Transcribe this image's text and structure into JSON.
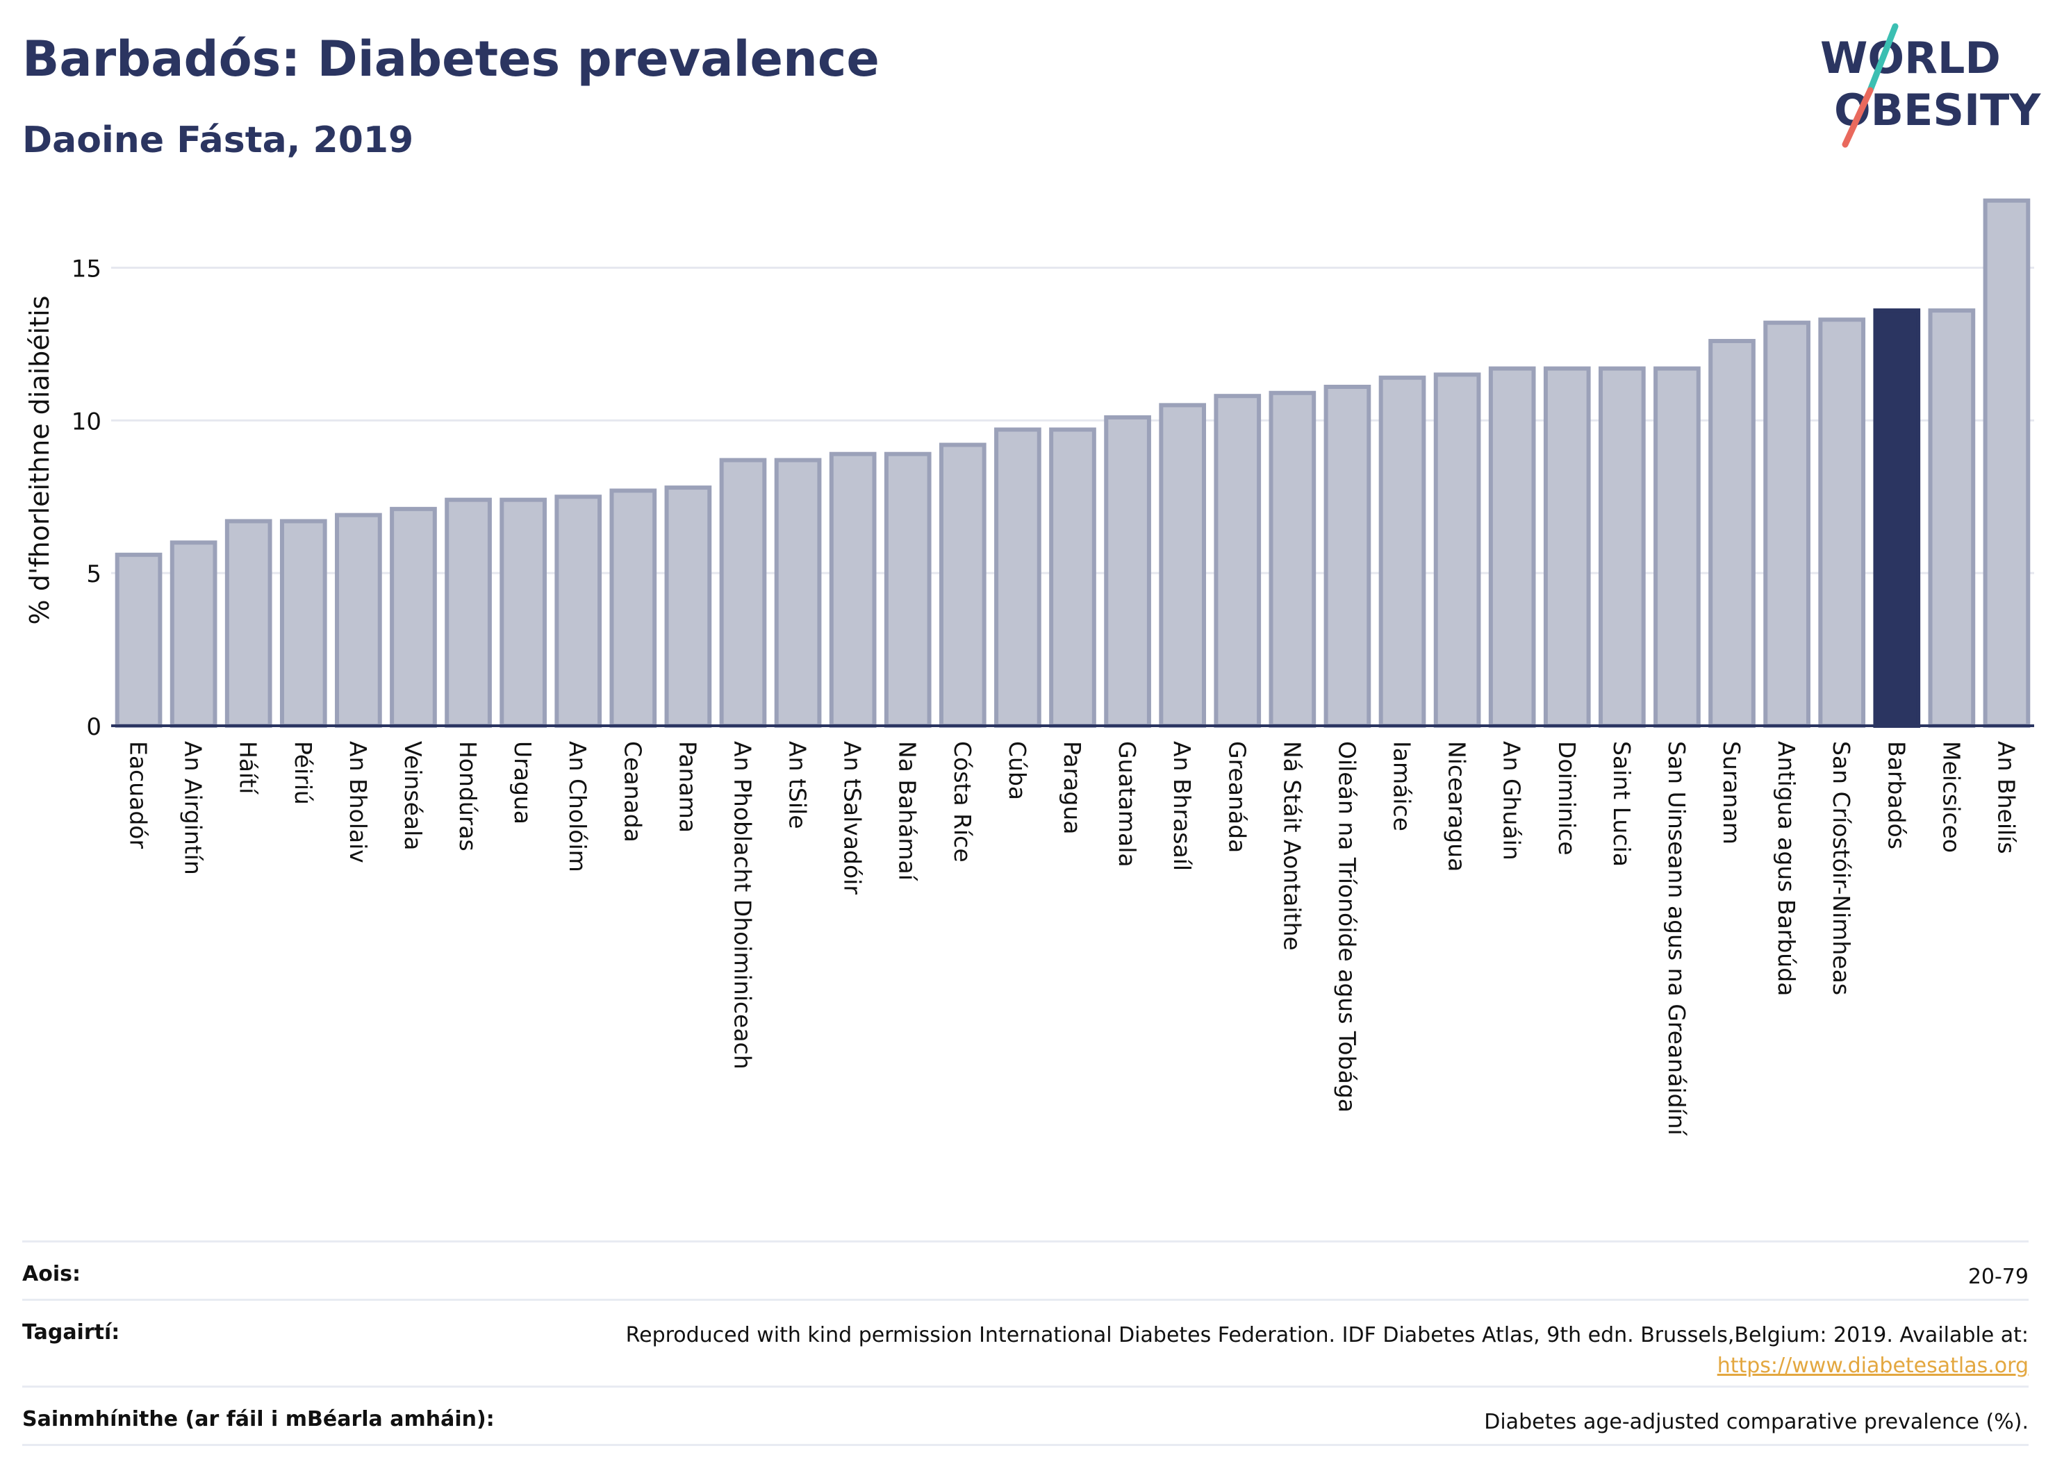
{
  "header": {
    "title": "Barbadós: Diabetes prevalence",
    "subtitle": "Daoine Fásta, 2019"
  },
  "logo": {
    "line1": "WORLD",
    "line2": "OBESITY",
    "colors": {
      "text": "#2b3561",
      "slash_top": "#3bbfb2",
      "slash_bottom": "#e9695d"
    }
  },
  "chart_data": {
    "type": "bar",
    "ylabel": "% d'fhorleithne diaibéitis",
    "xlabel": "",
    "ylim": [
      0,
      17.4
    ],
    "yticks": [
      "0",
      "5",
      "10",
      "15"
    ],
    "grid": true,
    "categories": [
      "Eacuadór",
      "An Airgintín",
      "Háítí",
      "Péiriú",
      "An Bholaiv",
      "Veinséala",
      "Hondúras",
      "Uragua",
      "An Cholóim",
      "Ceanada",
      "Panama",
      "An Phoblacht Dhoiminiceach",
      "An tSile",
      "An tSalvadóir",
      "Na Bahámaí",
      "Cósta Ríce",
      "Cúba",
      "Paragua",
      "Guatamala",
      "An Bhrasaíl",
      "Greanáda",
      "Ná Stáit Aontaithe",
      "Oileán na Tríonóide agus Tobága",
      "Iamáice",
      "Nicearagua",
      "An Ghuáin",
      "Doiminice",
      "Saint Lucia",
      "San Uinseann agus na Greanáidíní",
      "Suranam",
      "Antigua agus Barbúda",
      "San Críostóir-Nimheas",
      "Barbadós",
      "Meicsiceo",
      "An Bheilís"
    ],
    "values": [
      5.6,
      6.0,
      6.7,
      6.7,
      6.9,
      7.1,
      7.4,
      7.4,
      7.5,
      7.7,
      7.8,
      8.7,
      8.7,
      8.9,
      8.9,
      9.2,
      9.7,
      9.7,
      10.1,
      10.5,
      10.8,
      10.9,
      11.1,
      11.4,
      11.5,
      11.7,
      11.7,
      11.7,
      11.7,
      12.6,
      13.2,
      13.3,
      13.6,
      13.6,
      17.2
    ],
    "highlight": "Barbadós",
    "colors": {
      "bar": "#bfc3d1",
      "bar_border": "#9ba1b9",
      "highlight": "#2b3561"
    }
  },
  "footer": {
    "age_label": "Aois:",
    "age_value": "20-79",
    "refs_label": "Tagairtí:",
    "refs_text": "Reproduced with kind permission International Diabetes Federation. IDF Diabetes Atlas, 9th edn. Brussels,Belgium: 2019. Available at:",
    "refs_link": "https://www.diabetesatlas.org",
    "defs_label": "Sainmhínithe (ar fáil i mBéarla amháin):",
    "defs_value": "Diabetes age-adjusted comparative prevalence (%)."
  }
}
